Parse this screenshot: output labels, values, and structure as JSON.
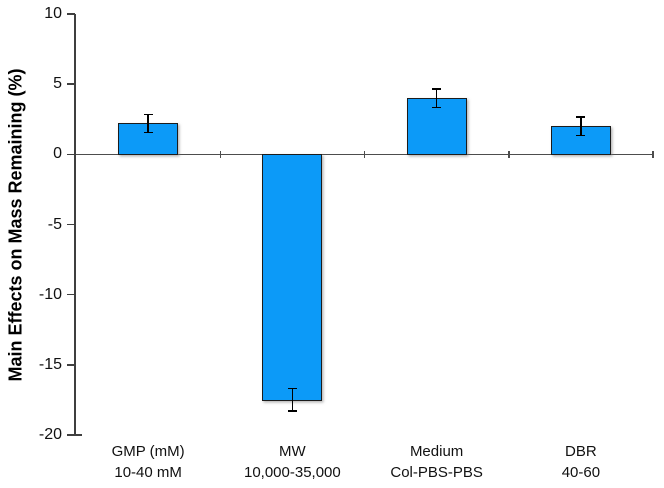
{
  "chart_data": {
    "type": "bar",
    "title": "",
    "ylabel": "Main Effects on Mass Remaining (%)",
    "xlabel": "",
    "ylim": [
      -20,
      10
    ],
    "yticks": [
      10,
      5,
      0,
      -5,
      -10,
      -15,
      -20
    ],
    "grid": false,
    "legend_position": "none",
    "categories": [
      {
        "line1": "GMP (mM)",
        "line2": "10-40 mM"
      },
      {
        "line1": "MW",
        "line2": "10,000-35,000"
      },
      {
        "line1": "Medium",
        "line2": "Col-PBS-PBS"
      },
      {
        "line1": "DBR",
        "line2": "40-60"
      }
    ],
    "series": [
      {
        "name": "Main Effects on Mass Remaining (%)",
        "values": [
          2.2,
          -17.5,
          4.0,
          2.0
        ],
        "errors": [
          0.65,
          0.8,
          0.65,
          0.65
        ]
      }
    ],
    "colors": {
      "bar_fill": "#0C9AF8",
      "bar_border": "#1c1c1c",
      "error_bar": "#000000",
      "axis": "#3f3f3f",
      "zero_line": "#4d4d4d",
      "text": "#111111"
    }
  }
}
